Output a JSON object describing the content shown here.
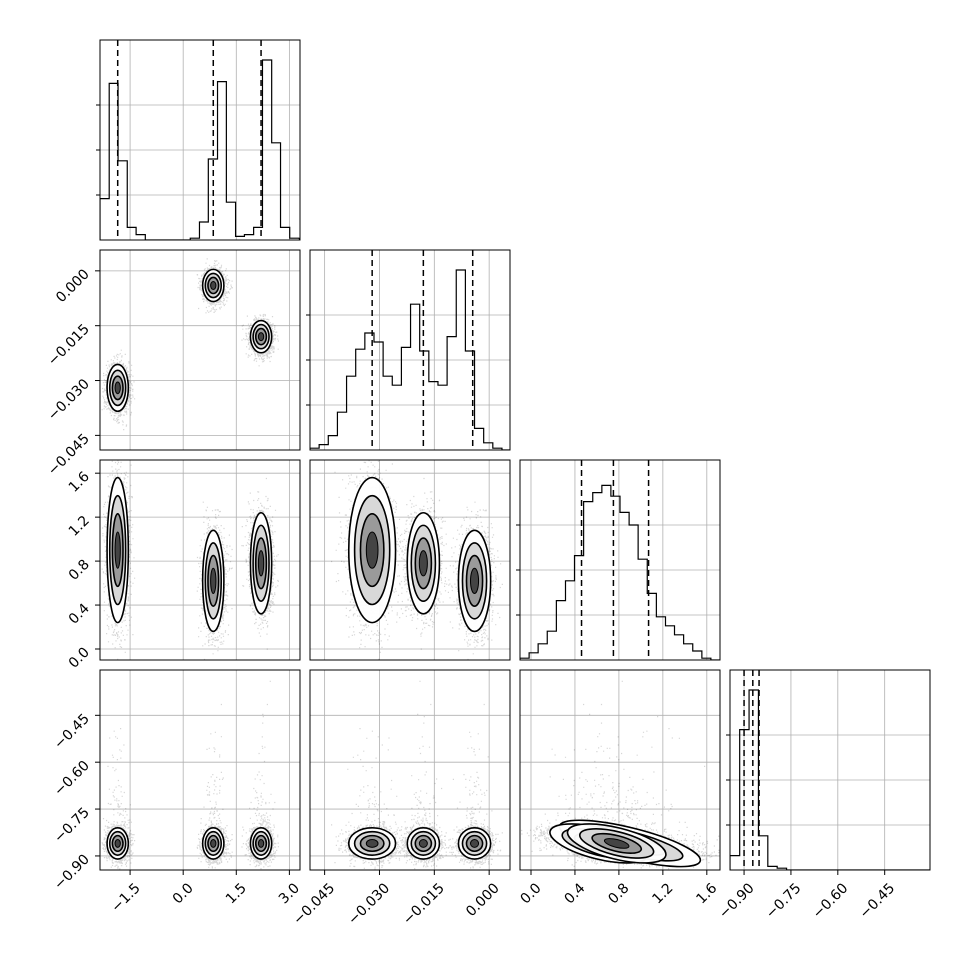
{
  "chart_data": {
    "type": "corner",
    "n_params": 4,
    "grid": true,
    "colors": {
      "contour": "#000000",
      "points": "#000000",
      "grid": "#b0b0b0",
      "background": "#ffffff"
    },
    "ranges": [
      [
        -2.35,
        3.3
      ],
      [
        -0.049,
        0.0057
      ],
      [
        -0.1,
        1.72
      ],
      [
        -0.945,
        -0.305
      ]
    ],
    "ticks": [
      {
        "values": [
          -1.5,
          0.0,
          1.5,
          3.0
        ],
        "labels": [
          "−1.5",
          "0.0",
          "1.5",
          "3.0"
        ]
      },
      {
        "values": [
          -0.045,
          -0.03,
          -0.015,
          0.0
        ],
        "labels": [
          "−0.045",
          "−0.030",
          "−0.015",
          "0.000"
        ]
      },
      {
        "values": [
          0.0,
          0.4,
          0.8,
          1.2,
          1.6
        ],
        "labels": [
          "0.0",
          "0.4",
          "0.8",
          "1.2",
          "1.6"
        ]
      },
      {
        "values": [
          -0.9,
          -0.75,
          -0.6,
          -0.45
        ],
        "labels": [
          "−0.90",
          "−0.75",
          "−0.60",
          "−0.45"
        ]
      }
    ],
    "histograms": [
      {
        "param": 0,
        "bins": [
          -2.35,
          -2.09,
          -1.84,
          -1.58,
          -1.33,
          -1.07,
          -0.82,
          -0.56,
          -0.31,
          -0.05,
          0.2,
          0.46,
          0.71,
          0.97,
          1.22,
          1.48,
          1.73,
          1.99,
          2.24,
          2.5,
          2.75,
          3.01
        ],
        "counts": [
          0.23,
          0.87,
          0.44,
          0.07,
          0.03,
          0.0,
          0.0,
          0.0,
          0.0,
          0.0,
          0.01,
          0.1,
          0.45,
          0.88,
          0.21,
          0.02,
          0.03,
          0.07,
          1.0,
          0.54,
          0.07,
          0.01
        ],
        "quantiles": [
          -1.85,
          0.85,
          2.2
        ]
      },
      {
        "param": 1,
        "bins": [
          -0.049,
          -0.0465,
          -0.044,
          -0.0415,
          -0.039,
          -0.0365,
          -0.034,
          -0.0315,
          -0.029,
          -0.0265,
          -0.024,
          -0.0215,
          -0.019,
          -0.0165,
          -0.014,
          -0.0115,
          -0.009,
          -0.0065,
          -0.004,
          -0.0015,
          0.001,
          0.0035
        ],
        "counts": [
          0.01,
          0.03,
          0.08,
          0.21,
          0.41,
          0.56,
          0.65,
          0.6,
          0.41,
          0.36,
          0.57,
          0.81,
          0.55,
          0.38,
          0.36,
          0.63,
          1.0,
          0.55,
          0.12,
          0.04,
          0.01,
          0.0
        ],
        "quantiles": [
          -0.032,
          -0.018,
          -0.0045
        ]
      },
      {
        "param": 2,
        "bins": [
          -0.1,
          -0.017,
          0.065,
          0.148,
          0.231,
          0.314,
          0.396,
          0.479,
          0.562,
          0.645,
          0.727,
          0.81,
          0.893,
          0.975,
          1.058,
          1.141,
          1.224,
          1.306,
          1.389,
          1.472,
          1.555,
          1.637
        ],
        "counts": [
          0.01,
          0.04,
          0.09,
          0.16,
          0.33,
          0.44,
          0.58,
          0.88,
          0.93,
          0.97,
          0.91,
          0.82,
          0.75,
          0.56,
          0.37,
          0.24,
          0.19,
          0.14,
          0.09,
          0.05,
          0.01,
          0.0
        ],
        "quantiles": [
          0.46,
          0.75,
          1.07
        ]
      },
      {
        "param": 3,
        "bins": [
          -0.945,
          -0.914,
          -0.884,
          -0.854,
          -0.824,
          -0.794,
          -0.764,
          -0.733,
          -0.703,
          -0.673,
          -0.643,
          -0.613,
          -0.583,
          -0.552,
          -0.522,
          -0.492,
          -0.462,
          -0.432,
          -0.402,
          -0.371,
          -0.341,
          -0.311
        ],
        "counts": [
          0.08,
          0.78,
          1.0,
          0.19,
          0.02,
          0.01,
          0.0,
          0.0,
          0.0,
          0.0,
          0.0,
          0.0,
          0.0,
          0.0,
          0.0,
          0.0,
          0.0,
          0.0,
          0.0,
          0.0,
          0.0,
          0.0
        ],
        "quantiles": [
          -0.9,
          -0.872,
          -0.852
        ]
      }
    ],
    "clusters": [
      {
        "means": [
          -1.85,
          -0.032,
          0.9,
          -0.86
        ],
        "sds": [
          0.15,
          0.0032,
          0.33,
          0.025
        ]
      },
      {
        "means": [
          0.85,
          -0.004,
          0.62,
          -0.86
        ],
        "sds": [
          0.15,
          0.0022,
          0.23,
          0.025
        ]
      },
      {
        "means": [
          2.2,
          -0.018,
          0.78,
          -0.86
        ],
        "sds": [
          0.15,
          0.0022,
          0.23,
          0.025
        ]
      }
    ],
    "correlation_x2_x3": -0.5
  }
}
